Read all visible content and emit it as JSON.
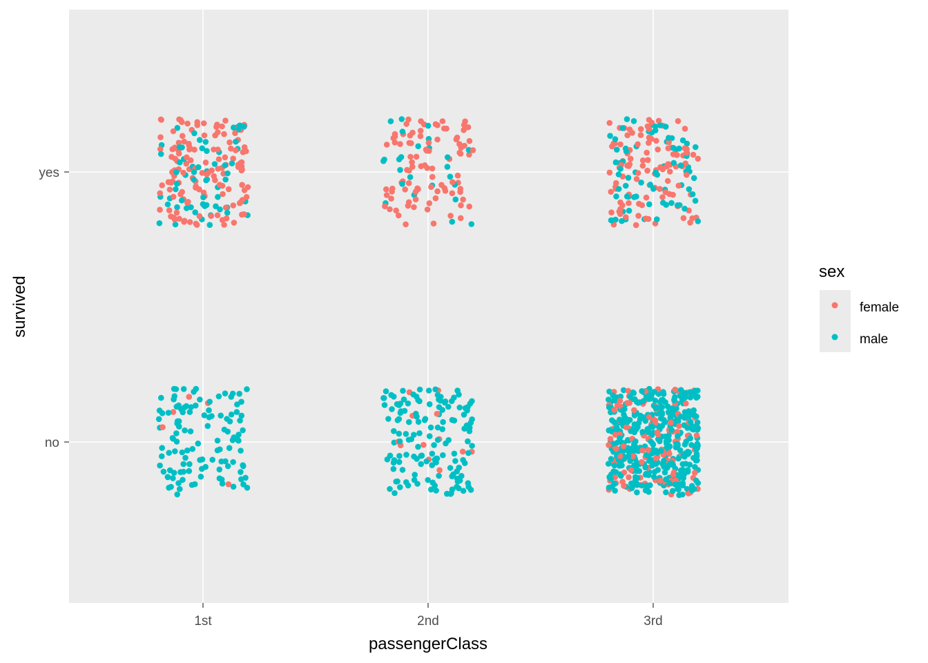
{
  "chart_data": {
    "type": "scatter",
    "jitter": true,
    "xlabel": "passengerClass",
    "ylabel": "survived",
    "categories_x": [
      "1st",
      "2nd",
      "3rd"
    ],
    "categories_y": [
      "no",
      "yes"
    ],
    "grid": true,
    "legend": {
      "title": "sex",
      "placement": "right",
      "entries": [
        {
          "name": "female",
          "color": "#F8766D"
        },
        {
          "name": "male",
          "color": "#00BFC4"
        }
      ]
    },
    "series": [
      {
        "name": "female",
        "color": "#F8766D",
        "groups": [
          {
            "x": "1st",
            "y": "yes",
            "count": 139
          },
          {
            "x": "1st",
            "y": "no",
            "count": 5
          },
          {
            "x": "2nd",
            "y": "yes",
            "count": 94
          },
          {
            "x": "2nd",
            "y": "no",
            "count": 12
          },
          {
            "x": "3rd",
            "y": "yes",
            "count": 106
          },
          {
            "x": "3rd",
            "y": "no",
            "count": 110
          }
        ]
      },
      {
        "name": "male",
        "color": "#00BFC4",
        "groups": [
          {
            "x": "1st",
            "y": "yes",
            "count": 61
          },
          {
            "x": "1st",
            "y": "no",
            "count": 118
          },
          {
            "x": "2nd",
            "y": "yes",
            "count": 25
          },
          {
            "x": "2nd",
            "y": "no",
            "count": 146
          },
          {
            "x": "3rd",
            "y": "yes",
            "count": 75
          },
          {
            "x": "3rd",
            "y": "no",
            "count": 418
          }
        ]
      }
    ]
  }
}
